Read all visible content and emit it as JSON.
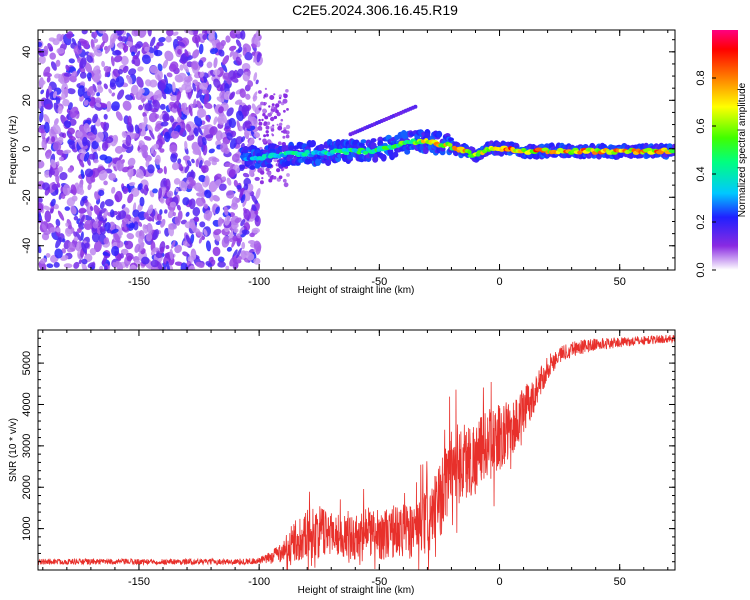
{
  "title": "C2E5.2024.306.16.45.R19",
  "colors": {
    "snr_line": "#e8302b"
  },
  "chart_data": [
    {
      "type": "heatmap",
      "xlabel": "Height of straight line (km)",
      "ylabel": "Frequency (Hz)",
      "xlim": [
        -192,
        73
      ],
      "ylim": [
        -50,
        49
      ],
      "x_ticks": [
        "-150",
        "-100",
        "-50",
        "0",
        "50"
      ],
      "y_ticks": [
        "40",
        "20",
        "0",
        "-20",
        "-40"
      ],
      "colorbar": {
        "label": "Normalized spectral amplitude",
        "range": [
          0,
          1
        ],
        "ticks": [
          "0.0",
          "0.2",
          "0.4",
          "0.6",
          "0.8"
        ]
      },
      "noise_region_x": [
        -192,
        -100
      ],
      "signal_ridge": {
        "x": [
          -107,
          -95,
          -85,
          -75,
          -65,
          -55,
          -45,
          -38,
          -30,
          -25,
          -20,
          -15,
          -10,
          -5,
          0,
          5,
          10,
          20,
          40,
          60,
          73
        ],
        "freq": [
          -4,
          -3,
          -2,
          -2,
          -1,
          -1,
          1,
          3,
          3,
          2,
          1,
          -1,
          -3,
          0,
          0,
          0,
          -1,
          -1,
          -1,
          -1,
          -1
        ],
        "amplitude": [
          0.35,
          0.4,
          0.45,
          0.45,
          0.5,
          0.5,
          0.55,
          0.6,
          0.75,
          0.8,
          0.8,
          0.85,
          0.8,
          0.9,
          0.95,
          0.95,
          0.9,
          0.9,
          0.9,
          0.9,
          0.85
        ]
      }
    },
    {
      "type": "line",
      "xlabel": "Height of straight line (km)",
      "ylabel": "SNR (10 * v/v)",
      "xlim": [
        -192,
        73
      ],
      "ylim": [
        0,
        5800
      ],
      "x_ticks": [
        "-150",
        "-100",
        "-50",
        "0",
        "50"
      ],
      "y_ticks": [
        "1000",
        "2000",
        "3000",
        "4000",
        "5000"
      ],
      "series": [
        {
          "x": [
            -192,
            -170,
            -150,
            -130,
            -110,
            -100,
            -95,
            -90,
            -85,
            -80,
            -75,
            -70,
            -65,
            -60,
            -55,
            -50,
            -45,
            -40,
            -35,
            -30,
            -25,
            -20,
            -15,
            -10,
            -5,
            0,
            5,
            10,
            15,
            20,
            25,
            30,
            40,
            50,
            60,
            73
          ],
          "y": [
            200,
            200,
            200,
            200,
            200,
            220,
            300,
            500,
            700,
            900,
            900,
            950,
            800,
            800,
            900,
            850,
            900,
            950,
            1000,
            1100,
            1600,
            2600,
            2600,
            2700,
            3100,
            3200,
            3400,
            3800,
            4300,
            4900,
            5200,
            5350,
            5450,
            5500,
            5550,
            5600
          ],
          "noise_amplitude": [
            70,
            70,
            70,
            70,
            70,
            80,
            150,
            300,
            500,
            600,
            650,
            550,
            500,
            550,
            600,
            600,
            650,
            650,
            700,
            800,
            900,
            1000,
            1000,
            900,
            800,
            800,
            700,
            600,
            400,
            300,
            200,
            200,
            150,
            120,
            110,
            100
          ]
        }
      ]
    }
  ]
}
